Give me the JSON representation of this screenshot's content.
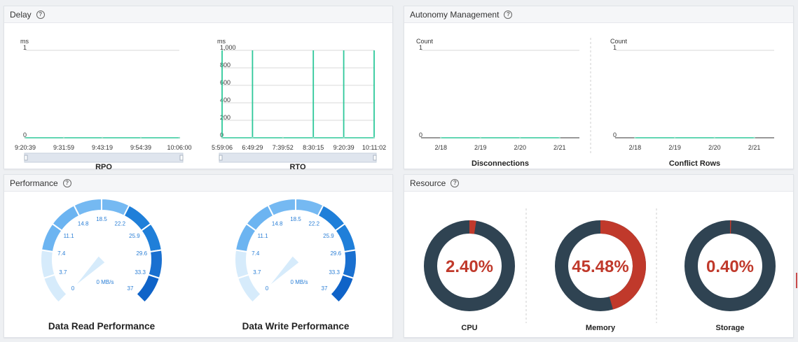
{
  "panels": {
    "delay": {
      "title": "Delay"
    },
    "autonomy": {
      "title": "Autonomy Management"
    },
    "performance": {
      "title": "Performance"
    },
    "resource": {
      "title": "Resource"
    }
  },
  "colors": {
    "accent_green": "#2ec89a",
    "dark_ring": "#2f4352",
    "red": "#c0392b",
    "gauge_light": "#d6ebfb",
    "gauge_blue": "#1a73d6"
  },
  "chart_data": [
    {
      "type": "line",
      "title": "RPO",
      "ylabel": "ms",
      "ylim": [
        0,
        1
      ],
      "y_ticks": [
        "0",
        "1"
      ],
      "x_ticks": [
        "9:20:39",
        "9:31:59",
        "9:43:19",
        "9:54:39",
        "10:06:00"
      ],
      "series": [
        {
          "values": [
            0,
            0,
            0,
            0,
            0
          ]
        }
      ]
    },
    {
      "type": "line",
      "title": "RTO",
      "ylabel": "ms",
      "ylim": [
        0,
        1000
      ],
      "y_ticks": [
        "0",
        "200",
        "400",
        "600",
        "800",
        "1,000"
      ],
      "x_ticks": [
        "5:59:06",
        "6:49:29",
        "7:39:52",
        "8:30:15",
        "9:20:39",
        "10:11:02"
      ],
      "spikes_at": [
        "5:59:06",
        "6:49:29",
        "8:30:15",
        "9:20:39",
        "10:11:02"
      ],
      "spike_value": 1000
    },
    {
      "type": "line",
      "title": "Disconnections",
      "ylabel": "Count",
      "ylim": [
        0,
        1
      ],
      "y_ticks": [
        "0",
        "1"
      ],
      "x_ticks": [
        "2/18",
        "2/19",
        "2/20",
        "2/21"
      ],
      "series": [
        {
          "values": [
            0,
            0,
            0,
            0
          ]
        }
      ]
    },
    {
      "type": "line",
      "title": "Conflict Rows",
      "ylabel": "Count",
      "ylim": [
        0,
        1
      ],
      "y_ticks": [
        "0",
        "1"
      ],
      "x_ticks": [
        "2/18",
        "2/19",
        "2/20",
        "2/21"
      ],
      "series": [
        {
          "values": [
            0,
            0,
            0,
            0
          ]
        }
      ]
    }
  ],
  "gauges": [
    {
      "title": "Data Read Performance",
      "value_label": "0 MB/s",
      "value": 0,
      "min": 0,
      "max": 37,
      "ticks": [
        "0",
        "3.7",
        "7.4",
        "11.1",
        "14.8",
        "18.5",
        "22.2",
        "25.9",
        "29.6",
        "33.3",
        "37"
      ]
    },
    {
      "title": "Data Write Performance",
      "value_label": "0 MB/s",
      "value": 0,
      "min": 0,
      "max": 37,
      "ticks": [
        "0",
        "3.7",
        "7.4",
        "11.1",
        "14.8",
        "18.5",
        "22.2",
        "25.9",
        "29.6",
        "33.3",
        "37"
      ]
    }
  ],
  "resources": [
    {
      "label": "CPU",
      "value_text": "2.40%",
      "percent": 2.4
    },
    {
      "label": "Memory",
      "value_text": "45.48%",
      "percent": 45.48
    },
    {
      "label": "Storage",
      "value_text": "0.40%",
      "percent": 0.4
    }
  ]
}
